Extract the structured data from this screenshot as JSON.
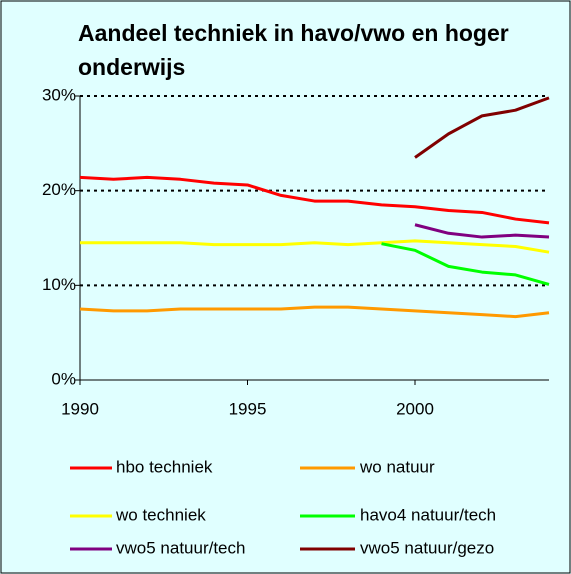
{
  "chart_data": {
    "type": "line",
    "title": "Aandeel techniek in havo/vwo en hoger onderwijs",
    "x": [
      1990,
      1991,
      1992,
      1993,
      1994,
      1995,
      1996,
      1997,
      1998,
      1999,
      2000,
      2001,
      2002,
      2003,
      2004
    ],
    "xlim": [
      1990,
      2004
    ],
    "xticks": [
      1990,
      1995,
      2000
    ],
    "ylim": [
      0,
      30
    ],
    "yticks": [
      {
        "value": 0,
        "label": "0%"
      },
      {
        "value": 10,
        "label": "10%"
      },
      {
        "value": 20,
        "label": "20%"
      },
      {
        "value": 30,
        "label": "30%"
      }
    ],
    "grid": true,
    "series": [
      {
        "name": "hbo techniek",
        "color": "#ff0000",
        "values": [
          21.4,
          21.2,
          21.4,
          21.2,
          20.8,
          20.6,
          19.5,
          18.9,
          18.9,
          18.5,
          18.3,
          17.9,
          17.7,
          17.0,
          16.6
        ]
      },
      {
        "name": "wo natuur",
        "color": "#ff9900",
        "values": [
          7.5,
          7.3,
          7.3,
          7.5,
          7.5,
          7.5,
          7.5,
          7.7,
          7.7,
          7.5,
          7.3,
          7.1,
          6.9,
          6.7,
          7.1
        ]
      },
      {
        "name": "wo techniek",
        "color": "#ffff00",
        "values": [
          14.5,
          14.5,
          14.5,
          14.5,
          14.3,
          14.3,
          14.3,
          14.5,
          14.3,
          14.5,
          14.7,
          14.5,
          14.3,
          14.1,
          13.5
        ]
      },
      {
        "name": "havo4 natuur/tech",
        "color": "#00ff00",
        "values": [
          null,
          null,
          null,
          null,
          null,
          null,
          null,
          null,
          null,
          14.4,
          13.7,
          12.0,
          11.4,
          11.1,
          10.1
        ]
      },
      {
        "name": "vwo5 natuur/tech",
        "color": "#800080",
        "values": [
          null,
          null,
          null,
          null,
          null,
          null,
          null,
          null,
          null,
          null,
          16.4,
          15.5,
          15.1,
          15.3,
          15.1
        ]
      },
      {
        "name": "vwo5 natuur/gezo",
        "color": "#800000",
        "values": [
          null,
          null,
          null,
          null,
          null,
          null,
          null,
          null,
          null,
          null,
          23.5,
          26.0,
          27.9,
          28.5,
          29.8
        ]
      }
    ]
  }
}
